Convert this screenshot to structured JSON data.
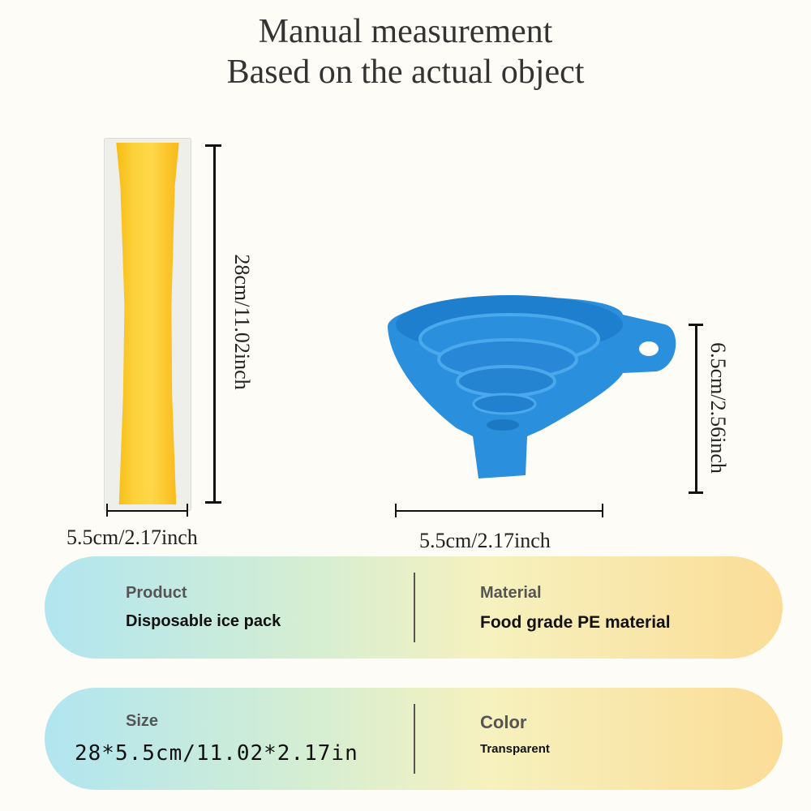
{
  "header": {
    "line1": "Manual measurement",
    "line2": "Based on the actual object"
  },
  "dimensions": {
    "pack_height": "28cm/11.02inch",
    "pack_width": "5.5cm/2.17inch",
    "funnel_height": "6.5cm/2.56inch",
    "funnel_width": "5.5cm/2.17inch"
  },
  "specs": {
    "product_label": "Product",
    "product_value": "Disposable ice pack",
    "material_label": "Material",
    "material_value": "Food grade PE material",
    "size_label": "Size",
    "size_value": "28*5.5cm/11.02*2.17in",
    "color_label": "Color",
    "color_value": "Transparent"
  },
  "colors": {
    "pack_fill": "#fcd23a",
    "funnel": "#2a8fdd"
  }
}
